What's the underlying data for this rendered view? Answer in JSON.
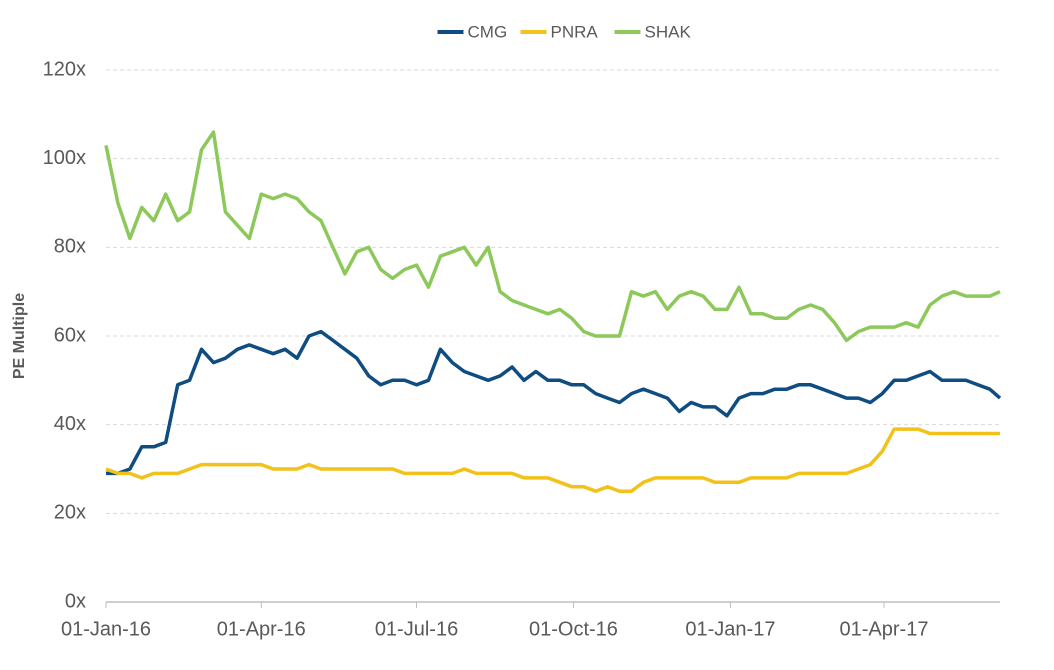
{
  "chart_data": {
    "type": "line",
    "y_label": "PE Multiple",
    "x": [
      "2016-01-01",
      "2016-01-08",
      "2016-01-15",
      "2016-01-22",
      "2016-01-29",
      "2016-02-05",
      "2016-02-12",
      "2016-02-19",
      "2016-02-26",
      "2016-03-04",
      "2016-03-11",
      "2016-03-18",
      "2016-03-25",
      "2016-04-01",
      "2016-04-08",
      "2016-04-15",
      "2016-04-22",
      "2016-04-29",
      "2016-05-06",
      "2016-05-13",
      "2016-05-20",
      "2016-05-27",
      "2016-06-03",
      "2016-06-10",
      "2016-06-17",
      "2016-06-24",
      "2016-07-01",
      "2016-07-08",
      "2016-07-15",
      "2016-07-22",
      "2016-07-29",
      "2016-08-05",
      "2016-08-12",
      "2016-08-19",
      "2016-08-26",
      "2016-09-02",
      "2016-09-09",
      "2016-09-16",
      "2016-09-23",
      "2016-09-30",
      "2016-10-07",
      "2016-10-14",
      "2016-10-21",
      "2016-10-28",
      "2016-11-04",
      "2016-11-11",
      "2016-11-18",
      "2016-11-25",
      "2016-12-02",
      "2016-12-09",
      "2016-12-16",
      "2016-12-23",
      "2016-12-30",
      "2017-01-06",
      "2017-01-13",
      "2017-01-20",
      "2017-01-27",
      "2017-02-03",
      "2017-02-10",
      "2017-02-17",
      "2017-02-24",
      "2017-03-03",
      "2017-03-10",
      "2017-03-17",
      "2017-03-24",
      "2017-03-31",
      "2017-04-07",
      "2017-04-14",
      "2017-04-21",
      "2017-04-28",
      "2017-05-05",
      "2017-05-12",
      "2017-05-19",
      "2017-05-26",
      "2017-06-02",
      "2017-06-08"
    ],
    "series": [
      {
        "name": "CMG",
        "color": "#0f4c81",
        "values": [
          29,
          29,
          30,
          35,
          35,
          36,
          49,
          50,
          57,
          54,
          55,
          57,
          58,
          57,
          56,
          57,
          55,
          60,
          61,
          59,
          57,
          55,
          51,
          49,
          50,
          50,
          49,
          50,
          57,
          54,
          52,
          51,
          50,
          51,
          53,
          50,
          52,
          50,
          50,
          49,
          49,
          47,
          46,
          45,
          47,
          48,
          47,
          46,
          43,
          45,
          44,
          44,
          42,
          46,
          47,
          47,
          48,
          48,
          49,
          49,
          48,
          47,
          46,
          46,
          45,
          47,
          50,
          50,
          51,
          52,
          50,
          50,
          50,
          49,
          48,
          46
        ]
      },
      {
        "name": "PNRA",
        "color": "#f2c11a",
        "values": [
          30,
          29,
          29,
          28,
          29,
          29,
          29,
          30,
          31,
          31,
          31,
          31,
          31,
          31,
          30,
          30,
          30,
          31,
          30,
          30,
          30,
          30,
          30,
          30,
          30,
          29,
          29,
          29,
          29,
          29,
          30,
          29,
          29,
          29,
          29,
          28,
          28,
          28,
          27,
          26,
          26,
          25,
          26,
          25,
          25,
          27,
          28,
          28,
          28,
          28,
          28,
          27,
          27,
          27,
          28,
          28,
          28,
          28,
          29,
          29,
          29,
          29,
          29,
          30,
          31,
          34,
          39,
          39,
          39,
          38,
          38,
          38,
          38,
          38,
          38,
          38
        ]
      },
      {
        "name": "SHAK",
        "color": "#8dc85a",
        "values": [
          103,
          90,
          82,
          89,
          86,
          92,
          86,
          88,
          102,
          106,
          88,
          85,
          82,
          92,
          91,
          92,
          91,
          88,
          86,
          80,
          74,
          79,
          80,
          75,
          73,
          75,
          76,
          71,
          78,
          79,
          80,
          76,
          80,
          70,
          68,
          67,
          66,
          65,
          66,
          64,
          61,
          60,
          60,
          60,
          70,
          69,
          70,
          66,
          69,
          70,
          69,
          66,
          66,
          71,
          65,
          65,
          64,
          64,
          66,
          67,
          66,
          63,
          59,
          61,
          62,
          62,
          62,
          63,
          62,
          67,
          69,
          70,
          69,
          69,
          69,
          70
        ]
      }
    ],
    "xlim": [
      "2016-01-01",
      "2017-06-08"
    ],
    "xticks": [
      {
        "value": "2016-01-01",
        "label": "01-Jan-16"
      },
      {
        "value": "2016-04-01",
        "label": "01-Apr-16"
      },
      {
        "value": "2016-07-01",
        "label": "01-Jul-16"
      },
      {
        "value": "2016-10-01",
        "label": "01-Oct-16"
      },
      {
        "value": "2017-01-01",
        "label": "01-Jan-17"
      },
      {
        "value": "2017-04-01",
        "label": "01-Apr-17"
      }
    ],
    "ylim": [
      0,
      120
    ],
    "yticks": [
      {
        "value": 0,
        "label": "0x"
      },
      {
        "value": 20,
        "label": "20x"
      },
      {
        "value": 40,
        "label": "40x"
      },
      {
        "value": 60,
        "label": "60x"
      },
      {
        "value": 80,
        "label": "80x"
      },
      {
        "value": 100,
        "label": "100x"
      },
      {
        "value": 120,
        "label": "120x"
      }
    ],
    "grid": true,
    "legend": "top"
  }
}
